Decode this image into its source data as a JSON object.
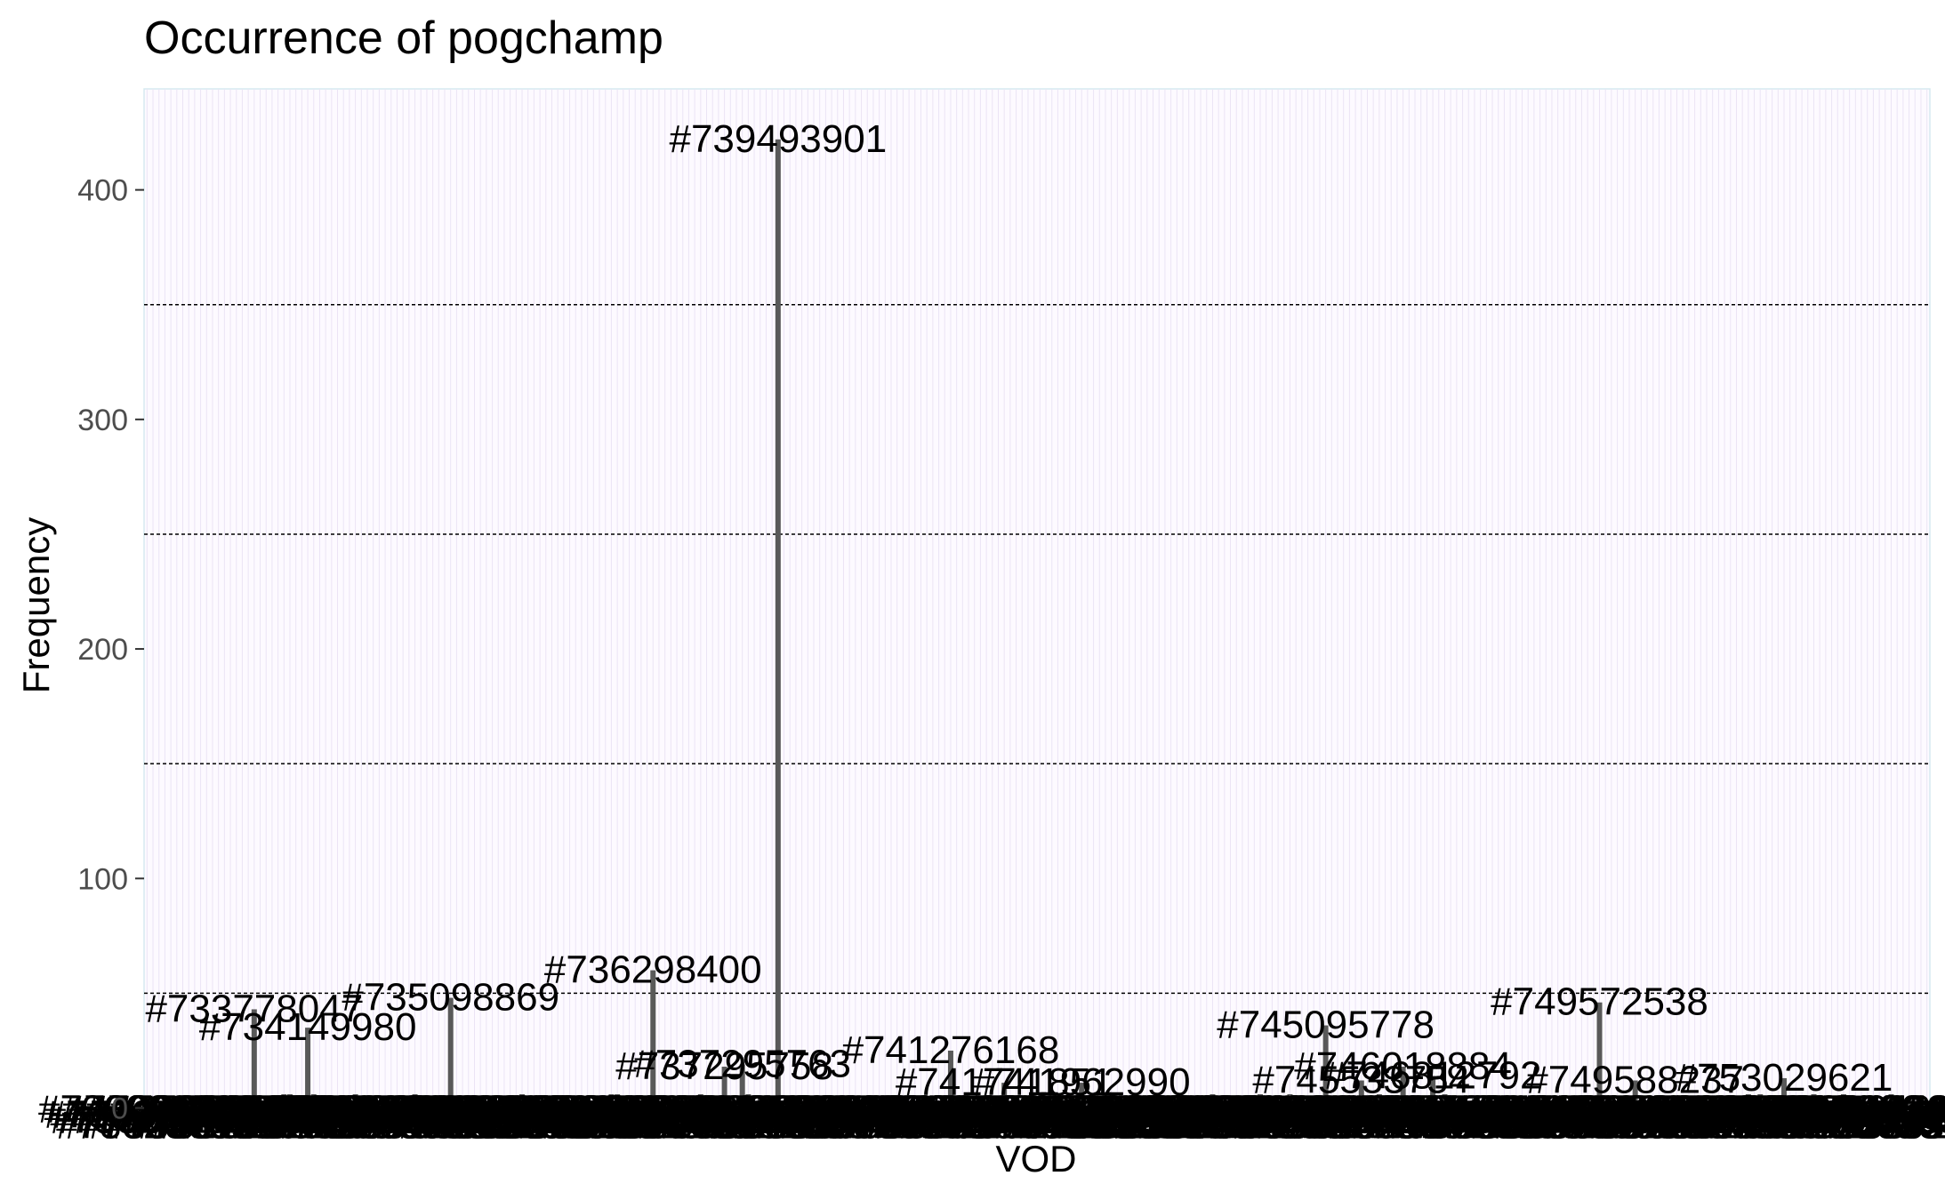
{
  "chart_data": {
    "type": "bar",
    "title": "Occurrence of pogchamp",
    "xlabel": "VOD",
    "ylabel": "Frequency",
    "ylim": [
      -6,
      444
    ],
    "yticks": [
      0,
      100,
      200,
      300,
      400
    ],
    "grid": {
      "major_y": false,
      "minor_y_dashed": [
        50,
        150,
        250,
        350
      ],
      "vertical_per_category": true
    },
    "bar_color": "#595959",
    "panel_background": "#fdfaff",
    "panel_border": "#d6eaf0",
    "categories": [
      "#733778047",
      "#734149980",
      "#735098869",
      "#736298400",
      "#737295758",
      "#737295763",
      "#739493901",
      "#741276168",
      "#741741851",
      "#741962990",
      "#745095778",
      "#745533754",
      "#746018884",
      "#746812792",
      "#749572538",
      "#749588237",
      "#753029621"
    ],
    "values": [
      43,
      35,
      48,
      60,
      18,
      19,
      422,
      25,
      11,
      11,
      36,
      12,
      18,
      14,
      46,
      12,
      13
    ],
    "bar_labels": [
      "#733778047",
      "#734149980",
      "#735098869",
      "#736298400",
      "#737295758",
      "#737295763",
      "#739493901",
      "#741276168",
      "#741741851",
      "#741962990",
      "#745095778",
      "#745533754",
      "#746018884",
      "#746812792",
      "#749572538",
      "#749588237",
      "#753029621"
    ],
    "background_vod_count": 300,
    "background_value_range": [
      0,
      6
    ]
  }
}
